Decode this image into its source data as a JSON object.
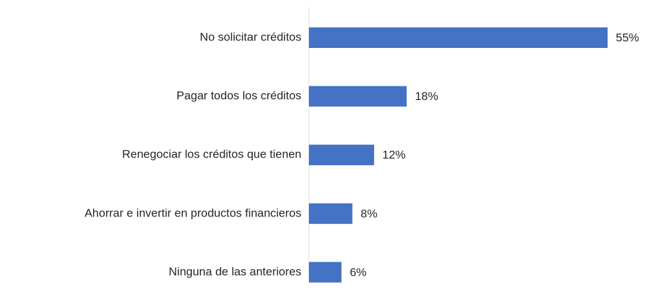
{
  "chart_data": {
    "type": "bar",
    "orientation": "horizontal",
    "categories": [
      "No solicitar créditos",
      "Pagar todos los créditos",
      "Renegociar los créditos que tienen",
      "Ahorrar e invertir en productos financieros",
      "Ninguna de las anteriores"
    ],
    "values": [
      55,
      18,
      12,
      8,
      6
    ],
    "value_labels": [
      "55%",
      "18%",
      "12%",
      "8%",
      "6%"
    ],
    "color": "#4472c4",
    "grid": false
  }
}
